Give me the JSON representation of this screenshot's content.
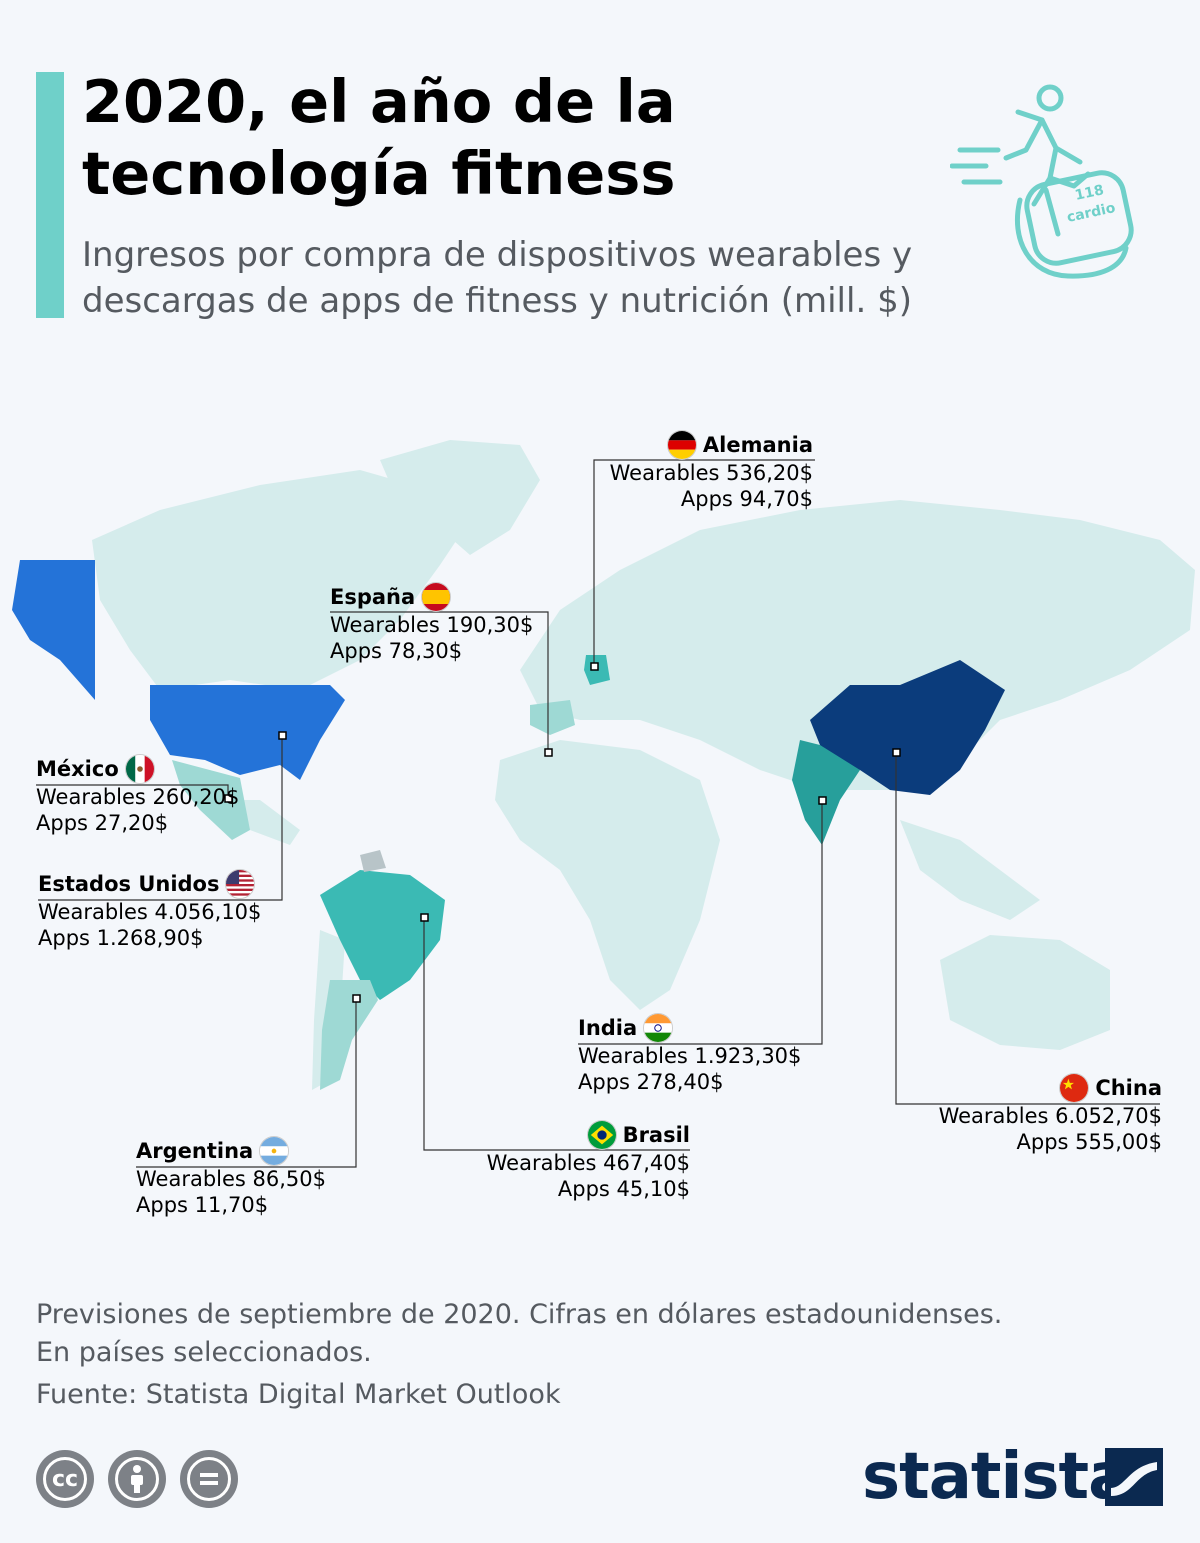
{
  "header": {
    "title_line1": "2020, el año de la",
    "title_line2": "tecnología fitness",
    "subtitle_line1": "Ingresos por compra de dispositivos wearables y",
    "subtitle_line2": "descargas de apps de fitness y nutrición (mill. $)",
    "hero_icon": "running-smartwatch-icon",
    "watch_text": "cardio",
    "watch_number": "118"
  },
  "colors": {
    "accent": "#6fd0c9",
    "land_default": "#d5ecec",
    "scale_light": "#9ed9d4",
    "scale_teal": "#3bbab4",
    "scale_dark_teal": "#279f9b",
    "scale_blue": "#2473d8",
    "scale_navy": "#0b3c7c",
    "brand": "#0b2950"
  },
  "countries": [
    {
      "key": "alemania",
      "name": "Alemania",
      "wearables": "Wearables 536,20$",
      "apps": "Apps 94,70$"
    },
    {
      "key": "espana",
      "name": "España",
      "wearables": "Wearables 190,30$",
      "apps": "Apps 78,30$"
    },
    {
      "key": "mexico",
      "name": "México",
      "wearables": "Wearables 260,20$",
      "apps": "Apps 27,20$"
    },
    {
      "key": "estados_unidos",
      "name": "Estados Unidos",
      "wearables": "Wearables 4.056,10$",
      "apps": "Apps 1.268,90$"
    },
    {
      "key": "india",
      "name": "India",
      "wearables": "Wearables 1.923,30$",
      "apps": "Apps 278,40$"
    },
    {
      "key": "china",
      "name": "China",
      "wearables": "Wearables 6.052,70$",
      "apps": "Apps 555,00$"
    },
    {
      "key": "argentina",
      "name": "Argentina",
      "wearables": "Wearables 86,50$",
      "apps": "Apps 11,70$"
    },
    {
      "key": "brasil",
      "name": "Brasil",
      "wearables": "Wearables 467,40$",
      "apps": "Apps 45,10$"
    }
  ],
  "footer": {
    "note_line1": "Previsiones de septiembre de 2020. Cifras en dólares estadounidenses.",
    "note_line2": "En países seleccionados.",
    "source": "Fuente: Statista Digital Market Outlook",
    "license_icons": [
      "cc-icon",
      "attribution-icon",
      "no-derivatives-icon"
    ],
    "brand": "statista"
  }
}
